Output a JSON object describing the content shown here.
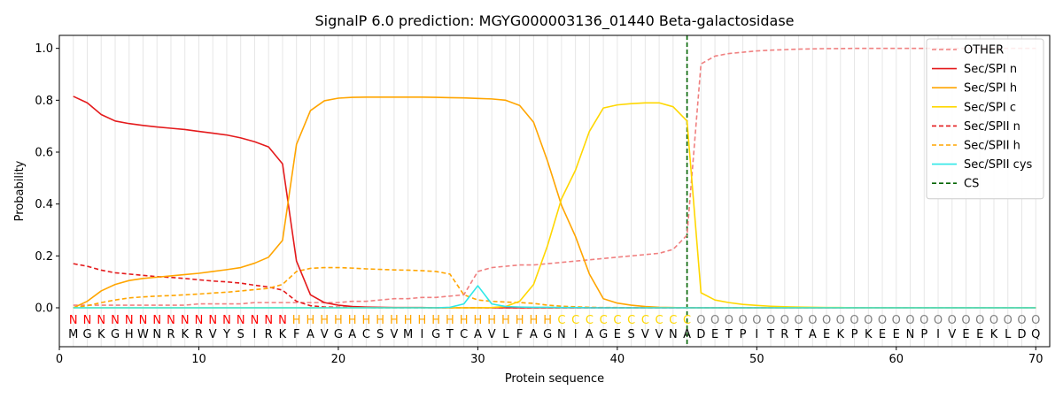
{
  "chart_data": {
    "type": "line",
    "title": "SignalP 6.0 prediction: MGYG000003136_01440 Beta-galactosidase",
    "xlabel": "Protein sequence",
    "ylabel": "Probability",
    "xlim": [
      0,
      71
    ],
    "ylim": [
      -0.15,
      1.05
    ],
    "x_ticks": [
      0,
      10,
      20,
      30,
      40,
      50,
      60,
      70
    ],
    "y_ticks": [
      0.0,
      0.2,
      0.4,
      0.6,
      0.8,
      1.0
    ],
    "grid": "vertical lines at each residue",
    "legend_position": "top-right",
    "sequence": [
      "M",
      "G",
      "K",
      "G",
      "H",
      "W",
      "N",
      "R",
      "K",
      "R",
      "V",
      "Y",
      "S",
      "I",
      "R",
      "K",
      "F",
      "A",
      "V",
      "G",
      "A",
      "C",
      "S",
      "V",
      "M",
      "I",
      "G",
      "T",
      "C",
      "A",
      "V",
      "L",
      "F",
      "A",
      "G",
      "N",
      "I",
      "A",
      "G",
      "E",
      "S",
      "V",
      "V",
      "N",
      "A",
      "D",
      "E",
      "T",
      "P",
      "I",
      "T",
      "R",
      "T",
      "A",
      "E",
      "K",
      "P",
      "K",
      "E",
      "E",
      "N",
      "P",
      "I",
      "V",
      "E",
      "E",
      "K",
      "L",
      "D",
      "Q"
    ],
    "region_labels": [
      "N",
      "N",
      "N",
      "N",
      "N",
      "N",
      "N",
      "N",
      "N",
      "N",
      "N",
      "N",
      "N",
      "N",
      "N",
      "N",
      "H",
      "H",
      "H",
      "H",
      "H",
      "H",
      "H",
      "H",
      "H",
      "H",
      "H",
      "H",
      "H",
      "H",
      "H",
      "H",
      "H",
      "H",
      "H",
      "C",
      "C",
      "C",
      "C",
      "C",
      "C",
      "C",
      "C",
      "C",
      "C",
      "O",
      "O",
      "O",
      "O",
      "O",
      "O",
      "O",
      "O",
      "O",
      "O",
      "O",
      "O",
      "O",
      "O",
      "O",
      "O",
      "O",
      "O",
      "O",
      "O",
      "O",
      "O",
      "O",
      "O",
      "O"
    ],
    "region_colors": {
      "N": "#ff0000",
      "H": "#ffa500",
      "C": "#ffd700",
      "O": "#808080"
    },
    "cleavage_site": 45,
    "series": [
      {
        "name": "OTHER",
        "color": "#f08080",
        "dash": "dashed",
        "values": [
          0.01,
          0.01,
          0.01,
          0.01,
          0.01,
          0.01,
          0.01,
          0.01,
          0.01,
          0.015,
          0.015,
          0.015,
          0.015,
          0.02,
          0.02,
          0.02,
          0.02,
          0.02,
          0.02,
          0.02,
          0.025,
          0.025,
          0.03,
          0.035,
          0.035,
          0.04,
          0.04,
          0.045,
          0.05,
          0.14,
          0.155,
          0.16,
          0.165,
          0.165,
          0.17,
          0.175,
          0.18,
          0.185,
          0.19,
          0.195,
          0.2,
          0.205,
          0.21,
          0.225,
          0.28,
          0.94,
          0.97,
          0.98,
          0.985,
          0.99,
          0.993,
          0.995,
          0.997,
          0.998,
          0.999,
          0.999,
          1.0,
          1.0,
          1.0,
          1.0,
          1.0,
          1.0,
          1.0,
          1.0,
          1.0,
          1.0,
          1.0,
          1.0,
          1.0,
          1.0
        ]
      },
      {
        "name": "Sec/SPI n",
        "color": "#e41a1c",
        "dash": "solid",
        "values": [
          0.815,
          0.79,
          0.745,
          0.72,
          0.71,
          0.703,
          0.697,
          0.692,
          0.687,
          0.68,
          0.673,
          0.666,
          0.655,
          0.64,
          0.62,
          0.555,
          0.18,
          0.05,
          0.02,
          0.01,
          0.005,
          0.003,
          0.002,
          0.001,
          0.001,
          0.001,
          0.0,
          0.0,
          0.0,
          0.0,
          0.0,
          0.0,
          0.0,
          0.0,
          0.0,
          0.0,
          0.0,
          0.0,
          0.0,
          0.0,
          0.0,
          0.0,
          0.0,
          0.0,
          0.0,
          0.0,
          0.0,
          0.0,
          0.0,
          0.0,
          0.0,
          0.0,
          0.0,
          0.0,
          0.0,
          0.0,
          0.0,
          0.0,
          0.0,
          0.0,
          0.0,
          0.0,
          0.0,
          0.0,
          0.0,
          0.0,
          0.0,
          0.0,
          0.0,
          0.0
        ]
      },
      {
        "name": "Sec/SPI h",
        "color": "#ffa500",
        "dash": "solid",
        "values": [
          0.0,
          0.025,
          0.065,
          0.09,
          0.105,
          0.113,
          0.118,
          0.123,
          0.128,
          0.133,
          0.14,
          0.147,
          0.155,
          0.172,
          0.195,
          0.26,
          0.63,
          0.76,
          0.798,
          0.808,
          0.811,
          0.812,
          0.812,
          0.812,
          0.812,
          0.812,
          0.811,
          0.81,
          0.809,
          0.807,
          0.805,
          0.8,
          0.78,
          0.715,
          0.565,
          0.395,
          0.275,
          0.13,
          0.035,
          0.018,
          0.01,
          0.005,
          0.002,
          0.001,
          0.0,
          0.0,
          0.0,
          0.0,
          0.0,
          0.0,
          0.0,
          0.0,
          0.0,
          0.0,
          0.0,
          0.0,
          0.0,
          0.0,
          0.0,
          0.0,
          0.0,
          0.0,
          0.0,
          0.0,
          0.0,
          0.0,
          0.0,
          0.0,
          0.0,
          0.0
        ]
      },
      {
        "name": "Sec/SPI c",
        "color": "#ffd700",
        "dash": "solid",
        "values": [
          0.0,
          0.0,
          0.0,
          0.0,
          0.0,
          0.0,
          0.0,
          0.0,
          0.0,
          0.0,
          0.0,
          0.0,
          0.0,
          0.0,
          0.0,
          0.0,
          0.0,
          0.0,
          0.0,
          0.0,
          0.0,
          0.0,
          0.0,
          0.0,
          0.0,
          0.0,
          0.0,
          0.0,
          0.0,
          0.0,
          0.001,
          0.005,
          0.025,
          0.09,
          0.24,
          0.42,
          0.53,
          0.68,
          0.77,
          0.782,
          0.787,
          0.79,
          0.79,
          0.775,
          0.72,
          0.058,
          0.03,
          0.02,
          0.013,
          0.009,
          0.006,
          0.004,
          0.003,
          0.002,
          0.001,
          0.001,
          0.0,
          0.0,
          0.0,
          0.0,
          0.0,
          0.0,
          0.0,
          0.0,
          0.0,
          0.0,
          0.0,
          0.0,
          0.0,
          0.0
        ]
      },
      {
        "name": "Sec/SPII n",
        "color": "#e41a1c",
        "dash": "dashed",
        "values": [
          0.17,
          0.16,
          0.145,
          0.135,
          0.13,
          0.125,
          0.12,
          0.117,
          0.113,
          0.108,
          0.103,
          0.1,
          0.095,
          0.087,
          0.08,
          0.068,
          0.025,
          0.008,
          0.003,
          0.002,
          0.001,
          0.001,
          0.0,
          0.0,
          0.0,
          0.0,
          0.0,
          0.0,
          0.0,
          0.0,
          0.0,
          0.0,
          0.0,
          0.0,
          0.0,
          0.0,
          0.0,
          0.0,
          0.0,
          0.0,
          0.0,
          0.0,
          0.0,
          0.0,
          0.0,
          0.0,
          0.0,
          0.0,
          0.0,
          0.0,
          0.0,
          0.0,
          0.0,
          0.0,
          0.0,
          0.0,
          0.0,
          0.0,
          0.0,
          0.0,
          0.0,
          0.0,
          0.0,
          0.0,
          0.0,
          0.0,
          0.0,
          0.0,
          0.0,
          0.0
        ]
      },
      {
        "name": "Sec/SPII h",
        "color": "#ffa500",
        "dash": "dashed",
        "values": [
          0.0,
          0.008,
          0.02,
          0.03,
          0.038,
          0.042,
          0.045,
          0.047,
          0.05,
          0.053,
          0.057,
          0.06,
          0.065,
          0.07,
          0.075,
          0.09,
          0.14,
          0.152,
          0.155,
          0.155,
          0.153,
          0.15,
          0.148,
          0.146,
          0.145,
          0.143,
          0.14,
          0.13,
          0.05,
          0.03,
          0.025,
          0.022,
          0.02,
          0.017,
          0.01,
          0.006,
          0.004,
          0.002,
          0.001,
          0.001,
          0.0,
          0.0,
          0.0,
          0.0,
          0.0,
          0.0,
          0.0,
          0.0,
          0.0,
          0.0,
          0.0,
          0.0,
          0.0,
          0.0,
          0.0,
          0.0,
          0.0,
          0.0,
          0.0,
          0.0,
          0.0,
          0.0,
          0.0,
          0.0,
          0.0,
          0.0,
          0.0,
          0.0,
          0.0,
          0.0
        ]
      },
      {
        "name": "Sec/SPII cys",
        "color": "#2ee8e8",
        "dash": "solid",
        "values": [
          0.0,
          0.0,
          0.0,
          0.0,
          0.0,
          0.0,
          0.0,
          0.0,
          0.0,
          0.0,
          0.0,
          0.0,
          0.0,
          0.0,
          0.0,
          0.0,
          0.0,
          0.0,
          0.0,
          0.0,
          0.0,
          0.0,
          0.0,
          0.0,
          0.0,
          0.0,
          0.0,
          0.002,
          0.015,
          0.085,
          0.015,
          0.005,
          0.003,
          0.002,
          0.002,
          0.001,
          0.001,
          0.0,
          0.0,
          0.0,
          0.0,
          0.0,
          0.0,
          0.0,
          0.0,
          0.0,
          0.0,
          0.0,
          0.0,
          0.0,
          0.0,
          0.0,
          0.0,
          0.0,
          0.0,
          0.0,
          0.0,
          0.0,
          0.0,
          0.0,
          0.0,
          0.0,
          0.0,
          0.0,
          0.0,
          0.0,
          0.0,
          0.0,
          0.0,
          0.0
        ]
      },
      {
        "name": "CS",
        "color": "#006400",
        "dash": "dashed",
        "type": "vline",
        "x": 45
      }
    ]
  }
}
